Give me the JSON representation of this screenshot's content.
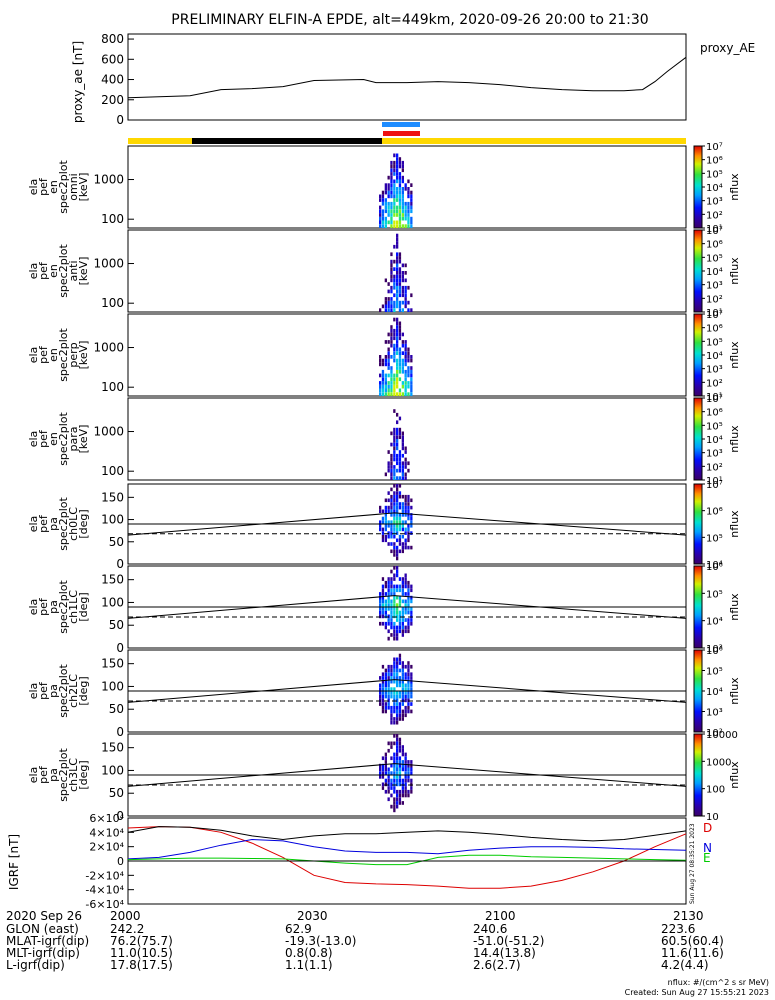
{
  "title": "PRELIMINARY ELFIN-A EPDE, alt=449km, 2020-09-26 20:00 to 21:30",
  "colors": {
    "bar_yellow": "#ffd800",
    "bar_black": "#000000",
    "bar_blue": "#1e8cff",
    "bar_red": "#ee1111",
    "grf_d": "#dd0000",
    "grf_n": "#0000dd",
    "grf_e": "#00cc00",
    "grf_total": "#000000"
  },
  "chart_data": [
    {
      "type": "line",
      "ylabel": "proxy_ae [nT]",
      "legend": "proxy_AE",
      "yticks": [
        "0",
        "200",
        "400",
        "600",
        "800"
      ],
      "ylim": [
        0,
        850
      ],
      "x_minutes": [
        0,
        10,
        15,
        20,
        25,
        30,
        38,
        40,
        45,
        50,
        55,
        60,
        65,
        70,
        75,
        80,
        83,
        85,
        87,
        90
      ],
      "values": [
        220,
        240,
        300,
        310,
        330,
        390,
        400,
        370,
        370,
        380,
        370,
        350,
        320,
        300,
        290,
        290,
        300,
        380,
        480,
        620
      ]
    },
    {
      "type": "heatmap",
      "name": "ela pef en spec2plot omni [keV]",
      "yticks": [
        "100",
        "1000"
      ],
      "colorbar_label": "nflux",
      "colorbar_ticks": [
        "10¹",
        "10²",
        "10³",
        "10⁴",
        "10⁵",
        "10⁶",
        "10⁷"
      ]
    },
    {
      "type": "heatmap",
      "name": "ela pef en spec2plot anti [keV]",
      "yticks": [
        "100",
        "1000"
      ],
      "colorbar_label": "nflux",
      "colorbar_ticks": [
        "10¹",
        "10²",
        "10³",
        "10⁴",
        "10⁵",
        "10⁶",
        "10⁷"
      ]
    },
    {
      "type": "heatmap",
      "name": "ela pef en spec2plot perp [keV]",
      "yticks": [
        "100",
        "1000"
      ],
      "colorbar_label": "nflux",
      "colorbar_ticks": [
        "10¹",
        "10²",
        "10³",
        "10⁴",
        "10⁵",
        "10⁶",
        "10⁷"
      ]
    },
    {
      "type": "heatmap",
      "name": "ela pef en spec2plot para [keV]",
      "yticks": [
        "100",
        "1000"
      ],
      "colorbar_label": "nflux",
      "colorbar_ticks": [
        "10¹",
        "10²",
        "10³",
        "10⁴",
        "10⁵",
        "10⁶",
        "10⁷"
      ]
    },
    {
      "type": "heatmap",
      "name": "ela pef pa spec2plot ch0LC [deg]",
      "yticks": [
        "0",
        "50",
        "100",
        "150"
      ],
      "colorbar_label": "nflux",
      "colorbar_ticks": [
        "10⁴",
        "10⁵",
        "10⁶",
        "10⁷"
      ]
    },
    {
      "type": "heatmap",
      "name": "ela pef pa spec2plot ch1LC [deg]",
      "yticks": [
        "0",
        "50",
        "100",
        "150"
      ],
      "colorbar_label": "nflux",
      "colorbar_ticks": [
        "10³",
        "10⁴",
        "10⁵",
        "10⁶"
      ]
    },
    {
      "type": "heatmap",
      "name": "ela pef pa spec2plot ch2LC [deg]",
      "yticks": [
        "0",
        "50",
        "100",
        "150"
      ],
      "colorbar_label": "nflux",
      "colorbar_ticks": [
        "10²",
        "10³",
        "10⁴",
        "10⁵",
        "10⁶"
      ]
    },
    {
      "type": "heatmap",
      "name": "ela pef pa spec2plot ch3LC [deg]",
      "yticks": [
        "0",
        "50",
        "100",
        "150"
      ],
      "colorbar_label": "nflux",
      "colorbar_ticks": [
        "10",
        "100",
        "1000",
        "10000"
      ]
    },
    {
      "type": "line",
      "ylabel": "IGRF [nT]",
      "yticks": [
        "-6×10⁴",
        "-4×10⁴",
        "-2×10⁴",
        "0",
        "2×10⁴",
        "4×10⁴",
        "6×10⁴"
      ],
      "ylim": [
        -60000,
        60000
      ],
      "x_minutes": [
        0,
        5,
        10,
        15,
        20,
        25,
        30,
        35,
        40,
        45,
        50,
        55,
        60,
        65,
        70,
        75,
        80,
        85,
        90
      ],
      "series": [
        {
          "name": "D",
          "values": [
            46000,
            48000,
            47000,
            40000,
            25000,
            5000,
            -20000,
            -30000,
            -32000,
            -33000,
            -35000,
            -38000,
            -38000,
            -35000,
            -27000,
            -15000,
            0,
            20000,
            38000
          ]
        },
        {
          "name": "N",
          "values": [
            3000,
            5000,
            12000,
            22000,
            30000,
            28000,
            20000,
            14000,
            12000,
            12000,
            10000,
            15000,
            18000,
            20000,
            20000,
            19000,
            17000,
            16000,
            15000
          ]
        },
        {
          "name": "E",
          "values": [
            2000,
            3000,
            4000,
            4000,
            3500,
            3000,
            0,
            -3000,
            -5000,
            -5000,
            5000,
            8000,
            8000,
            6000,
            5000,
            4000,
            3000,
            2000,
            1000
          ]
        },
        {
          "values": [
            40000,
            48000,
            47000,
            43000,
            35000,
            30000,
            35000,
            38000,
            38000,
            40000,
            42000,
            40000,
            37000,
            33000,
            30000,
            28000,
            30000,
            36000,
            42000
          ]
        }
      ]
    }
  ],
  "grf_labels": {
    "d": "D",
    "n": "N",
    "e": "E",
    "side_text": "Sun Aug 27 08:35:21 2023"
  },
  "info_table": {
    "date_label": "2020 Sep 26",
    "rows": [
      {
        "label": "GLON (east)",
        "values": [
          "242.2",
          "62.9",
          "240.6",
          "223.6"
        ]
      },
      {
        "label": "MLAT-igrf(dip)",
        "values": [
          "76.2(75.7)",
          "-19.3(-13.0)",
          "-51.0(-51.2)",
          "60.5(60.4)"
        ]
      },
      {
        "label": "MLT-igrf(dip)",
        "values": [
          "11.0(10.5)",
          "0.8(0.8)",
          "14.4(13.8)",
          "11.6(11.6)"
        ]
      },
      {
        "label": "L-igrf(dip)",
        "values": [
          "17.8(17.5)",
          "1.1(1.1)",
          "2.6(2.7)",
          "4.2(4.4)"
        ]
      }
    ],
    "times": [
      "2000",
      "2030",
      "2100",
      "2130"
    ]
  },
  "footer": {
    "units": "nflux: #/(cm^2 s sr MeV)",
    "created": "Created: Sun Aug 27 15:55:21 2023"
  }
}
